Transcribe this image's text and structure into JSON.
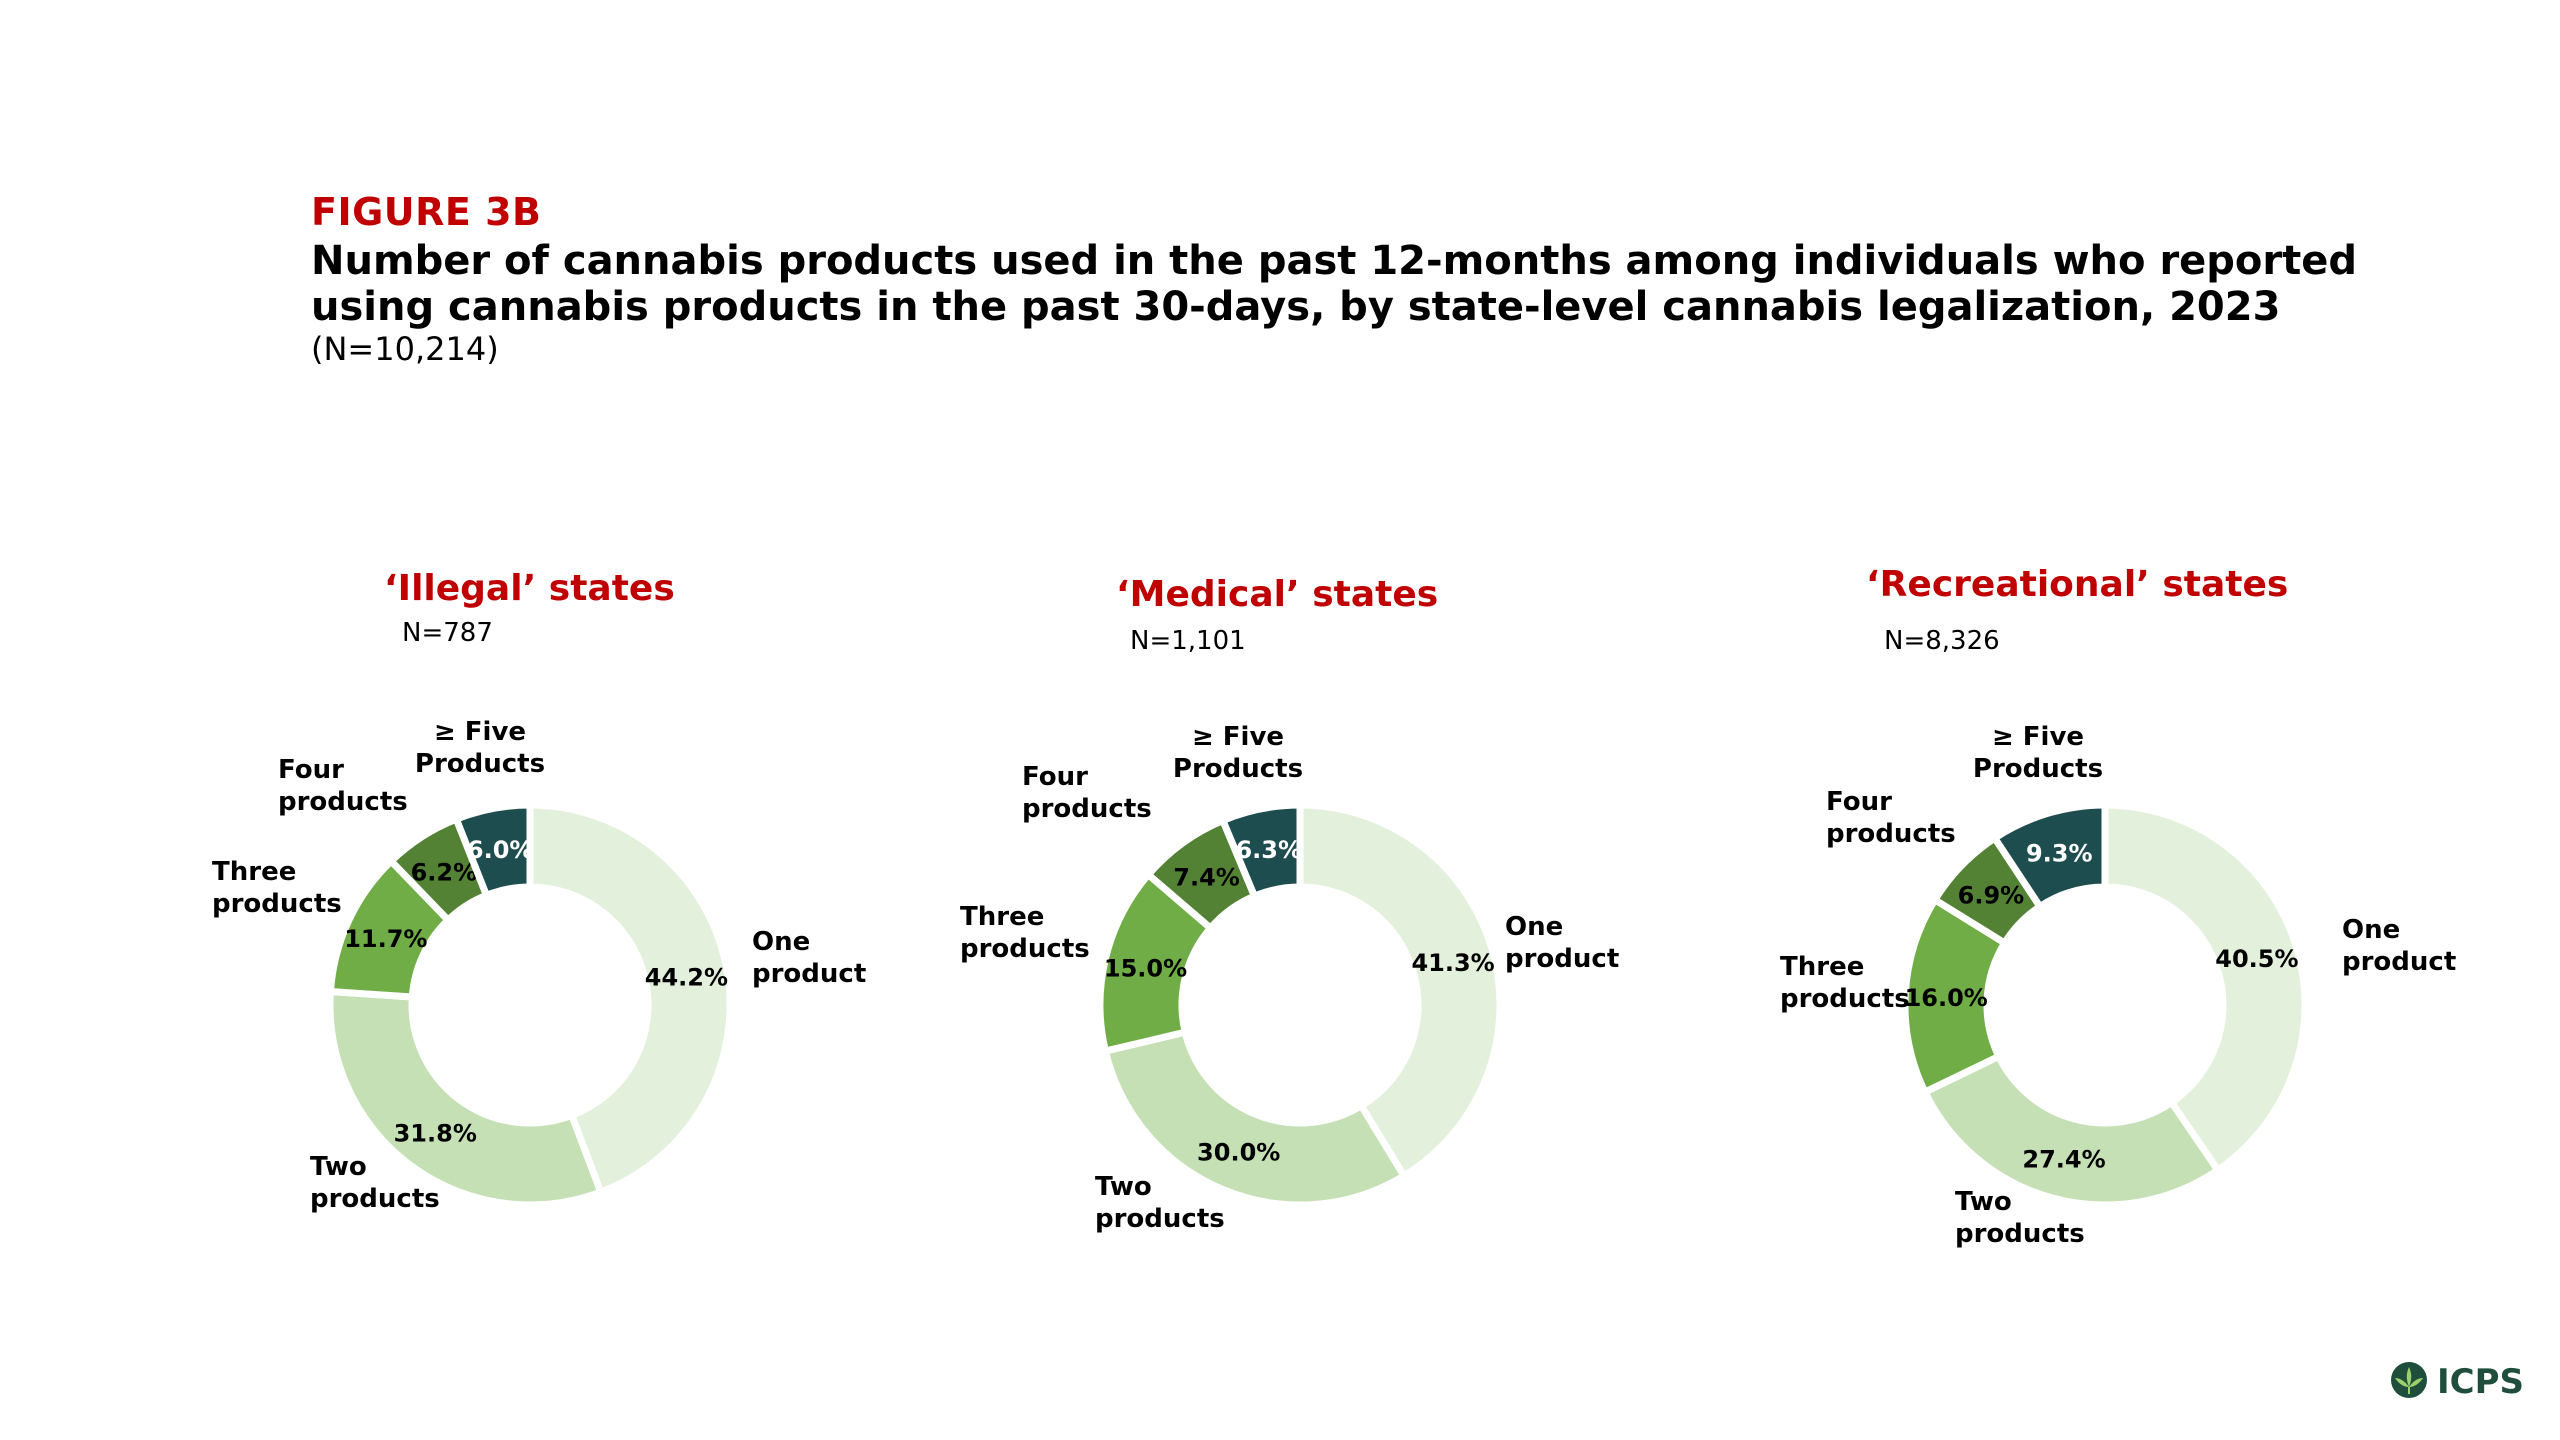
{
  "header": {
    "figure_label": "FIGURE 3B",
    "title": "Number of cannabis products used in the past 12-months among individuals who reported using cannabis products in the past 30-days, by state-level cannabis legalization, 2023",
    "subtitle": "(N=10,214)"
  },
  "logo": {
    "text": "ICPS",
    "icon": "cannabis-leaf-icon"
  },
  "colors": {
    "one": "#e3f0dc",
    "two": "#c5e0b4",
    "three": "#70ad47",
    "four": "#548235",
    "five": "#1e4d4f",
    "title_red": "#c00000"
  },
  "chart_data": [
    {
      "type": "pie",
      "title": "‘Illegal’ states",
      "n": "N=787",
      "categories": [
        [
          "One",
          "product"
        ],
        [
          "Two",
          "products"
        ],
        [
          "Three",
          "products"
        ],
        [
          "Four",
          "products"
        ],
        [
          "≥ Five",
          "Products"
        ]
      ],
      "values": [
        44.2,
        31.8,
        11.7,
        6.2,
        6.0
      ],
      "value_labels": [
        "44.2%",
        "31.8%",
        "11.7%",
        "6.2%",
        "6.0%"
      ]
    },
    {
      "type": "pie",
      "title": "‘Medical’ states",
      "n": "N=1,101",
      "categories": [
        [
          "One",
          "product"
        ],
        [
          "Two",
          "products"
        ],
        [
          "Three",
          "products"
        ],
        [
          "Four",
          "products"
        ],
        [
          "≥ Five",
          "Products"
        ]
      ],
      "values": [
        41.3,
        30.0,
        15.0,
        7.4,
        6.3
      ],
      "value_labels": [
        "41.3%",
        "30.0%",
        "15.0%",
        "7.4%",
        "6.3%"
      ]
    },
    {
      "type": "pie",
      "title": "‘Recreational’ states",
      "n": "N=8,326",
      "categories": [
        [
          "One",
          "product"
        ],
        [
          "Two",
          "products"
        ],
        [
          "Three",
          "products"
        ],
        [
          "Four",
          "products"
        ],
        [
          "≥ Five",
          "Products"
        ]
      ],
      "values": [
        40.5,
        27.4,
        16.0,
        6.9,
        9.3
      ],
      "value_labels": [
        "40.5%",
        "27.4%",
        "16.0%",
        "6.9%",
        "9.3%"
      ]
    }
  ]
}
